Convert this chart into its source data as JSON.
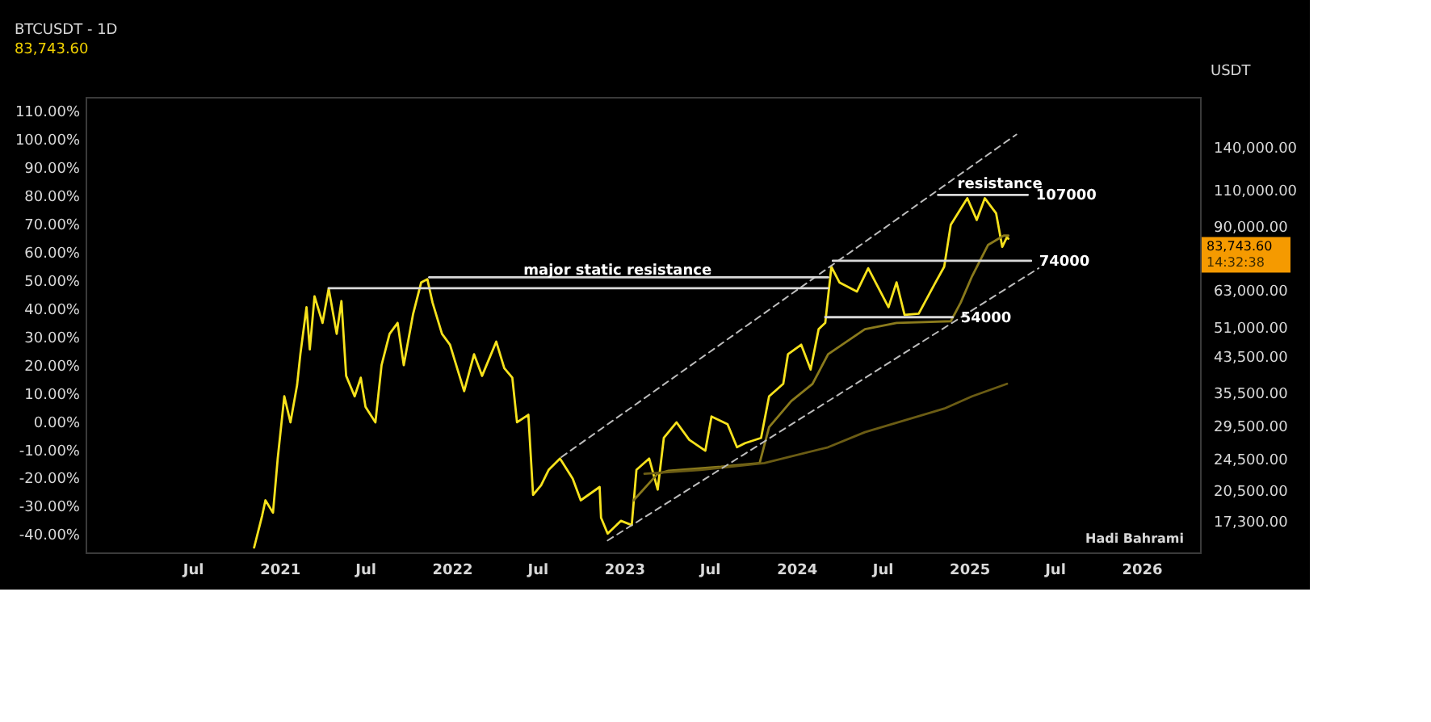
{
  "chart_data": {
    "type": "line",
    "title": "BTCUSDT - 1D",
    "subtitle": "83,743.60",
    "ylabel": "USDT",
    "log": "y",
    "grid": false,
    "xlim": [
      "2019-11-17",
      "2026-05-05"
    ],
    "xticks": [
      {
        "value": "2020-07-01",
        "label": "Jul"
      },
      {
        "value": "2021-01-01",
        "label": "2021"
      },
      {
        "value": "2021-07-01",
        "label": "Jul"
      },
      {
        "value": "2022-01-01",
        "label": "2022"
      },
      {
        "value": "2022-07-01",
        "label": "Jul"
      },
      {
        "value": "2023-01-01",
        "label": "2023"
      },
      {
        "value": "2023-07-01",
        "label": "Jul"
      },
      {
        "value": "2024-01-01",
        "label": "2024"
      },
      {
        "value": "2024-07-01",
        "label": "Jul"
      },
      {
        "value": "2025-01-01",
        "label": "2025"
      },
      {
        "value": "2025-07-01",
        "label": "Jul"
      },
      {
        "value": "2026-01-01",
        "label": "2026"
      }
    ],
    "ylim": [
      14500,
      185000
    ],
    "yticks": [
      {
        "value": 17300,
        "label": "17,300.00"
      },
      {
        "value": 20500,
        "label": "20,500.00"
      },
      {
        "value": 24500,
        "label": "24,500.00"
      },
      {
        "value": 29500,
        "label": "29,500.00"
      },
      {
        "value": 35500,
        "label": "35,500.00"
      },
      {
        "value": 43500,
        "label": "43,500.00"
      },
      {
        "value": 51000,
        "label": "51,000.00"
      },
      {
        "value": 63000,
        "label": "63,000.00"
      },
      {
        "value": 90000,
        "label": "90,000.00"
      },
      {
        "value": 110000,
        "label": "110,000.00"
      },
      {
        "value": 140000,
        "label": "140,000.00"
      }
    ],
    "y2lim": [
      -46.5,
      115
    ],
    "y2ticks": [
      {
        "value": -40,
        "label": "-40.00%"
      },
      {
        "value": -30,
        "label": "-30.00%"
      },
      {
        "value": -20,
        "label": "-20.00%"
      },
      {
        "value": -10,
        "label": "-10.00%"
      },
      {
        "value": 0,
        "label": "0.00%"
      },
      {
        "value": 10,
        "label": "10.00%"
      },
      {
        "value": 20,
        "label": "20.00%"
      },
      {
        "value": 30,
        "label": "30.00%"
      },
      {
        "value": 40,
        "label": "40.00%"
      },
      {
        "value": 50,
        "label": "50.00%"
      },
      {
        "value": 60,
        "label": "60.00%"
      },
      {
        "value": 70,
        "label": "70.00%"
      },
      {
        "value": 80,
        "label": "80.00%"
      },
      {
        "value": 90,
        "label": "90.00%"
      },
      {
        "value": 100,
        "label": "100.00%"
      },
      {
        "value": 110,
        "label": "110.00%"
      }
    ],
    "series": [
      {
        "color": "#f7e21c",
        "x": [
          "2020-11-08",
          "2020-11-25",
          "2020-12-02",
          "2020-12-18",
          "2020-12-28",
          "2021-01-11",
          "2021-01-24",
          "2021-02-07",
          "2021-02-14",
          "2021-02-27",
          "2021-03-06",
          "2021-03-16",
          "2021-04-02",
          "2021-04-15",
          "2021-05-02",
          "2021-05-12",
          "2021-05-22",
          "2021-06-09",
          "2021-06-22",
          "2021-07-02",
          "2021-07-23",
          "2021-08-05",
          "2021-08-22",
          "2021-09-08",
          "2021-09-21",
          "2021-10-11",
          "2021-10-28",
          "2021-11-10",
          "2021-11-21",
          "2021-12-11",
          "2021-12-28",
          "2022-01-27",
          "2022-02-17",
          "2022-03-06",
          "2022-04-05",
          "2022-04-22",
          "2022-05-09",
          "2022-05-19",
          "2022-06-12",
          "2022-06-22",
          "2022-07-09",
          "2022-07-25",
          "2022-08-18",
          "2022-09-14",
          "2022-10-01",
          "2022-11-10",
          "2022-11-13",
          "2022-11-27",
          "2022-12-25",
          "2023-01-17",
          "2023-01-27",
          "2023-02-23",
          "2023-03-13",
          "2023-03-26",
          "2023-04-22",
          "2023-05-19",
          "2023-06-22",
          "2023-07-05",
          "2023-08-08",
          "2023-08-28",
          "2023-09-14",
          "2023-10-18",
          "2023-11-04",
          "2023-12-04",
          "2023-12-14",
          "2024-01-11",
          "2024-01-31",
          "2024-02-17",
          "2024-03-02",
          "2024-03-15",
          "2024-04-01",
          "2024-05-08",
          "2024-06-01",
          "2024-07-14",
          "2024-07-31",
          "2024-08-17",
          "2024-09-16",
          "2024-10-20",
          "2024-11-09",
          "2024-11-23",
          "2024-12-28",
          "2025-01-17",
          "2025-02-03",
          "2025-02-27",
          "2025-03-12",
          "2025-03-22",
          "2025-03-25"
        ],
        "values": [
          14900,
          17800,
          19400,
          18100,
          24500,
          34700,
          30000,
          36900,
          43900,
          57100,
          45100,
          60700,
          52300,
          63400,
          49200,
          59100,
          38900,
          34700,
          38500,
          32700,
          30000,
          41300,
          49200,
          52300,
          41300,
          55100,
          65600,
          66800,
          58600,
          49200,
          46300,
          35700,
          43900,
          38900,
          47100,
          40600,
          38500,
          30000,
          31300,
          20000,
          21100,
          23000,
          24500,
          21900,
          19400,
          20900,
          17600,
          16100,
          17300,
          16900,
          23000,
          24500,
          20600,
          27500,
          30000,
          27200,
          25600,
          31000,
          29700,
          26100,
          26700,
          27500,
          34700,
          37200,
          43900,
          46300,
          40300,
          50500,
          52300,
          71600,
          65600,
          62300,
          71000,
          57100,
          65600,
          54700,
          55100,
          65100,
          71600,
          90600,
          105000,
          93000,
          105000,
          96500,
          80000,
          84500,
          83743.6
        ]
      },
      {
        "color": "#8a7a1c",
        "x": [
          "2023-01-21",
          "2023-03-13",
          "2023-04-05",
          "2023-07-25",
          "2023-10-15",
          "2023-11-04",
          "2023-12-21",
          "2024-02-04",
          "2024-03-08",
          "2024-05-25",
          "2024-07-31",
          "2024-11-23",
          "2024-12-14",
          "2025-01-07",
          "2025-02-10",
          "2025-03-15",
          "2025-03-25"
        ],
        "values": [
          19400,
          22500,
          22900,
          23400,
          23900,
          29200,
          33800,
          37200,
          43900,
          50500,
          52300,
          52800,
          58600,
          67900,
          80900,
          85200,
          85200
        ]
      },
      {
        "color": "#6b5c14",
        "x": [
          "2023-02-13",
          "2023-06-12",
          "2023-10-25",
          "2024-03-08",
          "2024-05-25",
          "2024-11-09",
          "2025-01-07",
          "2025-03-22"
        ],
        "values": [
          22500,
          23000,
          23900,
          26100,
          28400,
          32400,
          34700,
          37200
        ]
      },
      {
        "color": "#bdbdbd",
        "line_style": "dashed",
        "x": [
          "2022-08-21",
          "2025-04-11"
        ],
        "values": [
          24700,
          150000
        ]
      },
      {
        "color": "#bdbdbd",
        "line_style": "dashed",
        "x": [
          "2022-11-27",
          "2025-05-28"
        ],
        "values": [
          15500,
          71000
        ]
      },
      {
        "color": "#d9d9d9",
        "x": [
          "2021-11-14",
          "2024-03-08"
        ],
        "values": [
          67500,
          67500
        ]
      },
      {
        "color": "#d9d9d9",
        "x": [
          "2021-04-15",
          "2024-03-08"
        ],
        "values": [
          63500,
          63500
        ]
      },
      {
        "color": "#d9d9d9",
        "x": [
          "2024-10-27",
          "2025-05-05"
        ],
        "values": [
          107000,
          107000
        ]
      },
      {
        "color": "#d9d9d9",
        "x": [
          "2024-03-18",
          "2025-05-12"
        ],
        "values": [
          74000,
          74000
        ]
      },
      {
        "color": "#d9d9d9",
        "x": [
          "2024-03-02",
          "2024-11-27"
        ],
        "values": [
          54000,
          54000
        ]
      }
    ],
    "annotations": [
      {
        "text": "major static resistance",
        "x": "2022-12-18",
        "y": 70300
      },
      {
        "text": "resistance",
        "x": "2024-10-27",
        "y": 107000
      },
      {
        "text": "107000",
        "x": "2025-05-05",
        "y": 107000
      },
      {
        "text": "74000",
        "x": "2025-05-12",
        "y": 74000
      },
      {
        "text": "54000",
        "x": "2024-11-27",
        "y": 54000
      },
      "83,743.60",
      "14:32:38",
      "Hadi Bahrami"
    ]
  }
}
